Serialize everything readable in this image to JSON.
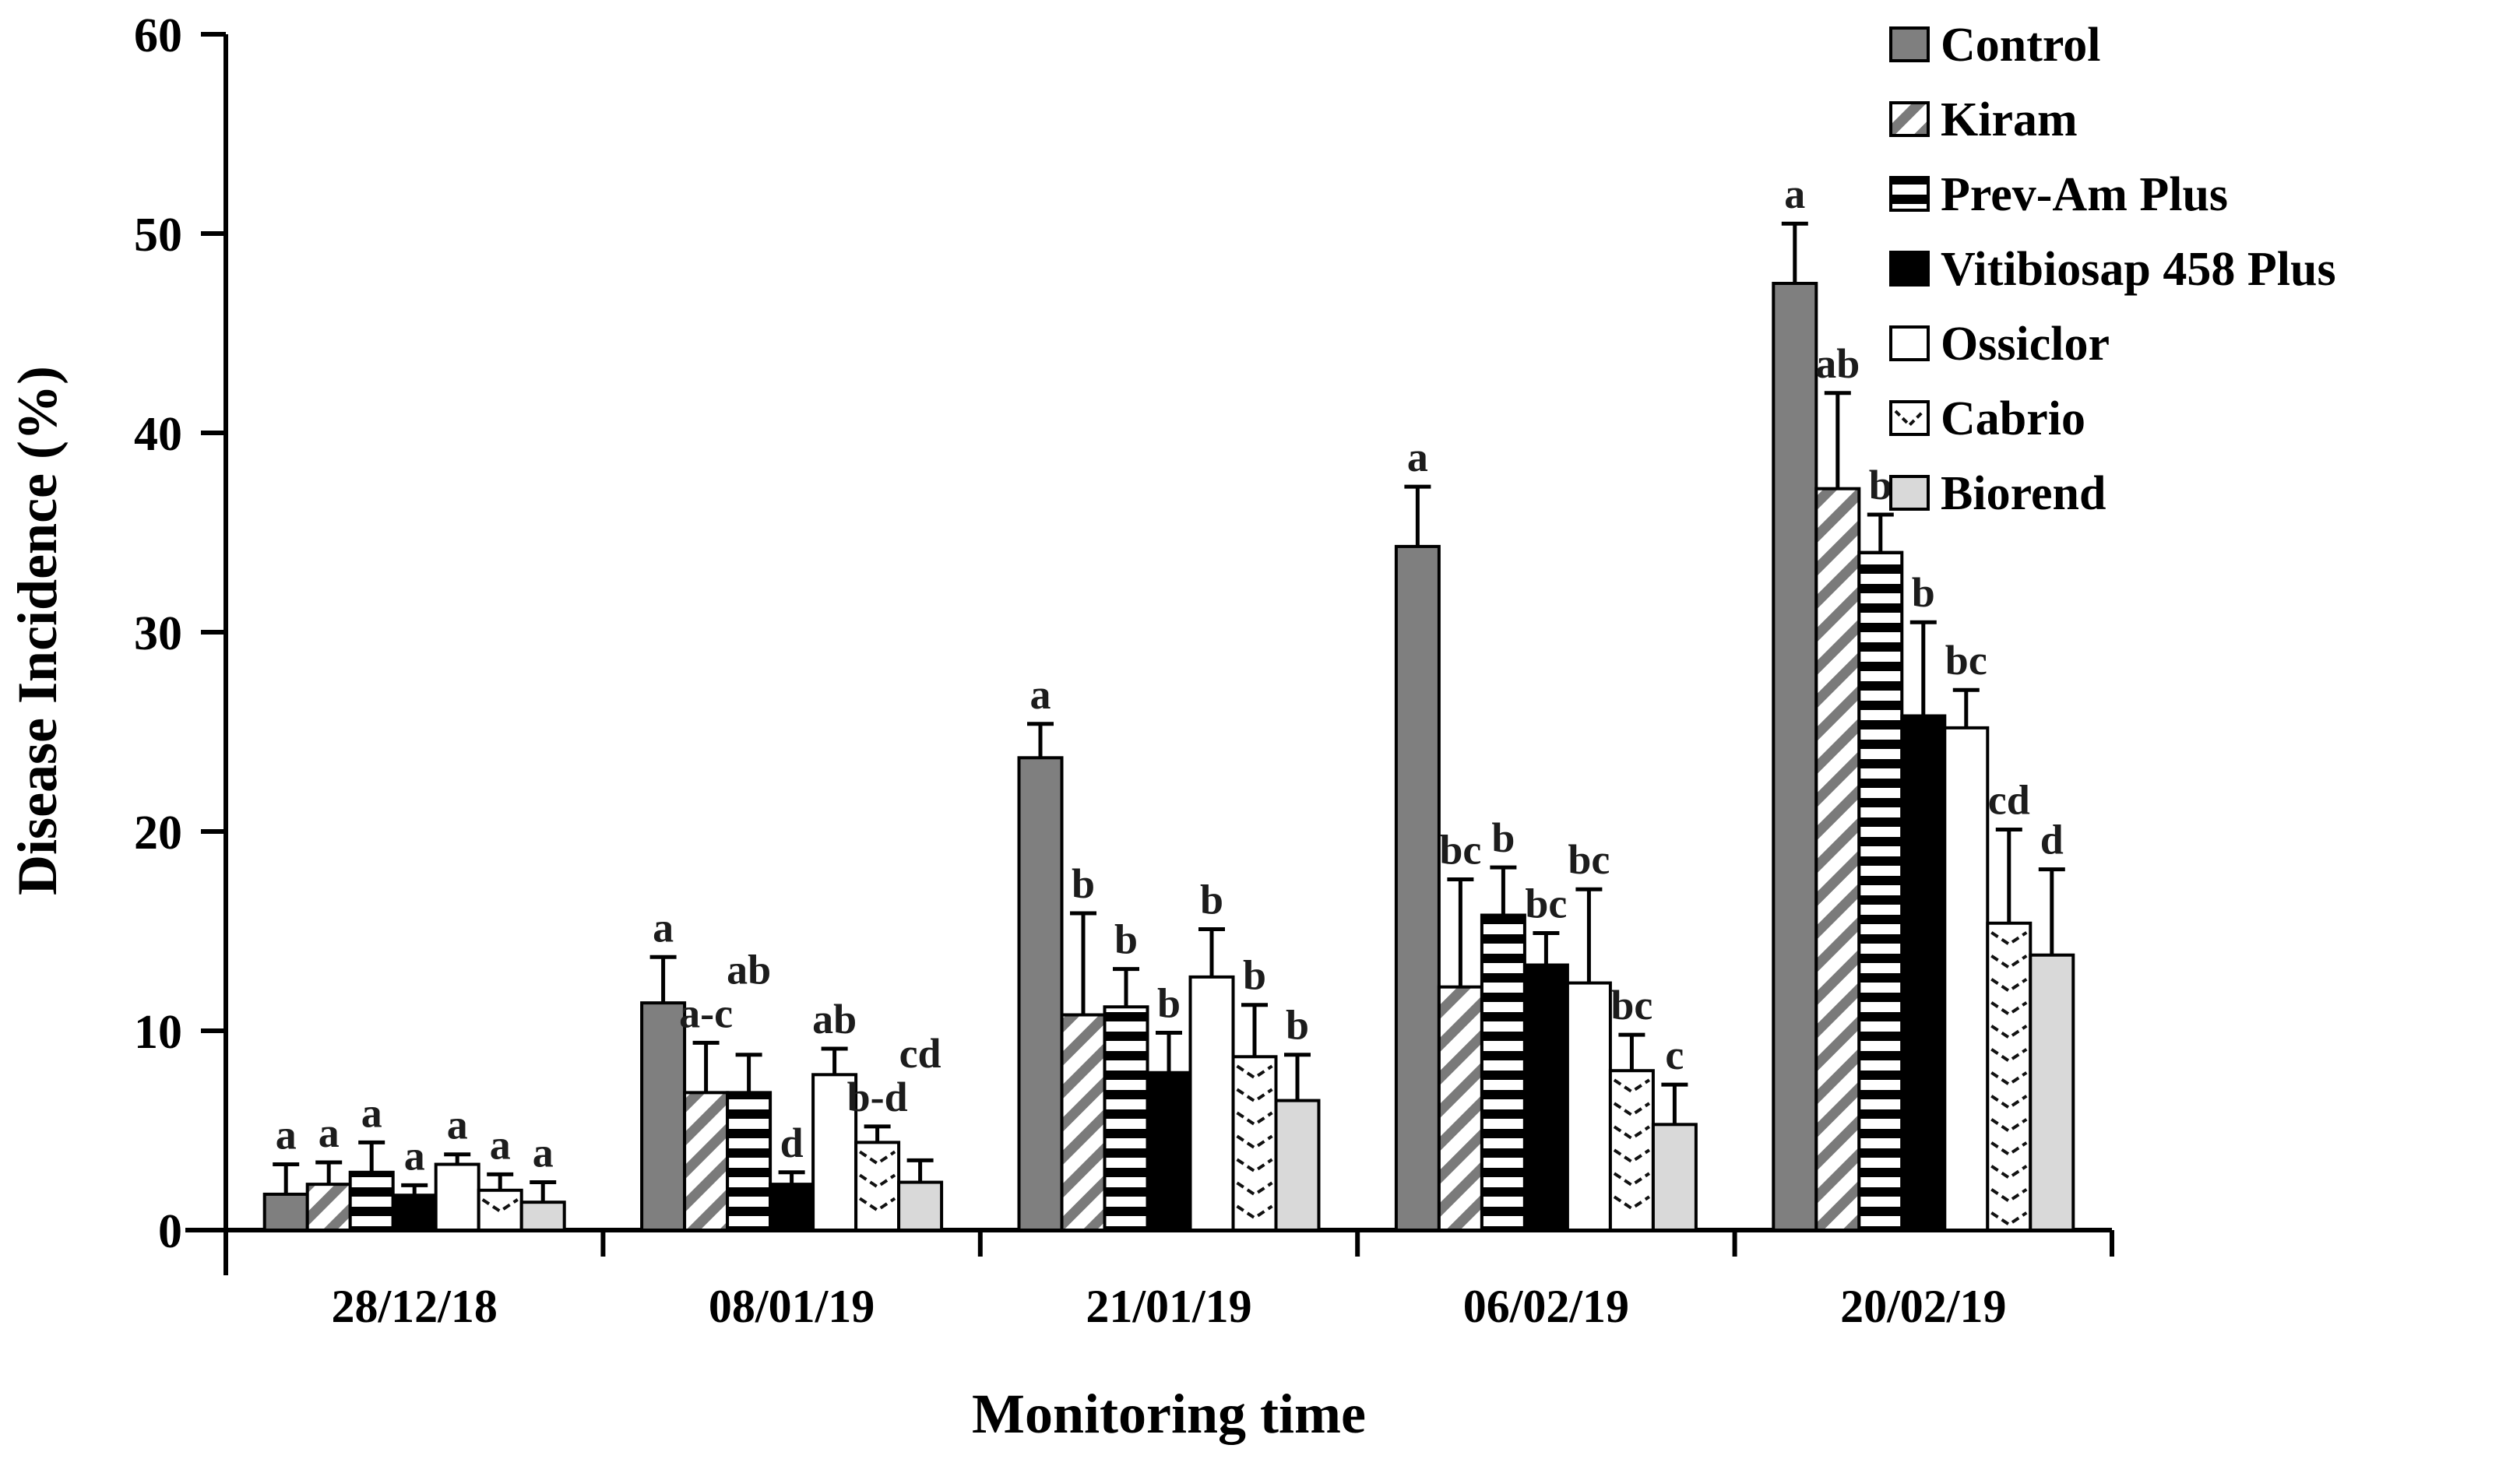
{
  "chart_data": {
    "type": "bar",
    "title": "",
    "xlabel": "Monitoring time",
    "ylabel": "Disease Incidence (%)",
    "ylim": [
      0,
      60
    ],
    "yticks": [
      0,
      10,
      20,
      30,
      40,
      50,
      60
    ],
    "grid": false,
    "legend_position": "top-right",
    "error_bars": "plus-sd-top-cap",
    "categories": [
      "28/12/18",
      "08/01/19",
      "21/01/19",
      "06/02/19",
      "20/02/19"
    ],
    "series": [
      {
        "name": "Control",
        "pattern": "solid",
        "color": "#7f7f7f",
        "values": [
          1.8,
          11.4,
          23.7,
          34.3,
          47.5
        ],
        "errors": [
          1.5,
          2.3,
          1.7,
          3.0,
          3.0
        ],
        "letters": [
          "a",
          "a",
          "a",
          "a",
          "a"
        ]
      },
      {
        "name": "Kiram",
        "pattern": "diagonal-stripes",
        "color": "#7a7a7a",
        "values": [
          2.3,
          6.9,
          10.8,
          12.2,
          37.2
        ],
        "errors": [
          1.1,
          2.5,
          5.1,
          5.4,
          4.8
        ],
        "letters": [
          "a",
          "a-c",
          "b",
          "bc",
          "ab"
        ]
      },
      {
        "name": "Prev-Am Plus",
        "pattern": "horizontal-stripes",
        "color": "#000000",
        "values": [
          2.9,
          6.9,
          11.2,
          15.8,
          34.0
        ],
        "errors": [
          1.5,
          1.9,
          1.9,
          2.4,
          1.9
        ],
        "letters": [
          "a",
          "ab",
          "b",
          "b",
          "b"
        ]
      },
      {
        "name": "Vitibiosap 458 Plus",
        "pattern": "solid",
        "color": "#000000",
        "values": [
          1.75,
          2.3,
          7.9,
          13.3,
          25.8
        ],
        "errors": [
          0.5,
          0.6,
          2.0,
          1.6,
          4.7
        ],
        "letters": [
          "a",
          "d",
          "b",
          "bc",
          "b"
        ]
      },
      {
        "name": "Ossiclor",
        "pattern": "solid",
        "color": "#ffffff",
        "values": [
          3.3,
          7.8,
          12.7,
          12.4,
          25.2
        ],
        "errors": [
          0.5,
          1.3,
          2.4,
          4.7,
          1.9
        ],
        "letters": [
          "a",
          "ab",
          "b",
          "bc",
          "bc"
        ]
      },
      {
        "name": "Cabrio",
        "pattern": "chevron",
        "color": "#111111",
        "values": [
          2.0,
          4.4,
          8.7,
          8.0,
          15.4
        ],
        "errors": [
          0.8,
          0.8,
          2.6,
          1.8,
          4.7
        ],
        "letters": [
          "a",
          "b-d",
          "b",
          "bc",
          "cd"
        ]
      },
      {
        "name": "Biorend",
        "pattern": "solid",
        "color": "#d9d9d9",
        "values": [
          1.4,
          2.4,
          6.5,
          5.3,
          13.8
        ],
        "errors": [
          1.0,
          1.1,
          2.3,
          2.0,
          4.3
        ],
        "letters": [
          "a",
          "cd",
          "b",
          "c",
          "d"
        ]
      }
    ]
  }
}
